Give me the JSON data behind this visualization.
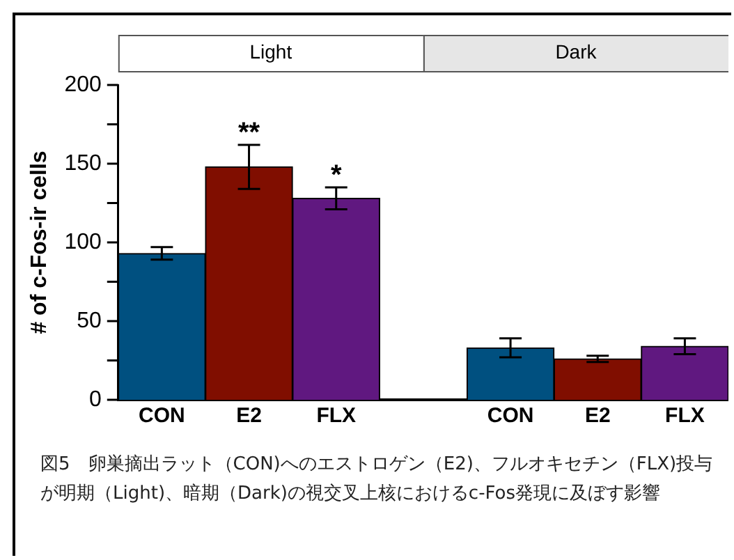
{
  "chart_data": {
    "type": "bar",
    "ylabel": "# of c-Fos-ir cells",
    "categories": [
      "CON",
      "E2",
      "FLX",
      null,
      "CON",
      "E2",
      "FLX"
    ],
    "values": [
      93,
      148,
      128,
      null,
      33,
      26,
      34
    ],
    "errors": [
      4,
      14,
      7,
      null,
      6,
      2,
      5
    ],
    "colors": [
      "#005080",
      "#800e00",
      "#601880",
      null,
      "#005080",
      "#800e00",
      "#601880"
    ],
    "ylim": [
      0,
      200
    ],
    "yticks": [
      0,
      {
        "value": 25,
        "label": null
      },
      50,
      {
        "value": 75,
        "label": null
      },
      100,
      {
        "value": 125,
        "label": null
      },
      150,
      {
        "value": 175,
        "label": null
      },
      200
    ],
    "grid": false,
    "legend": false,
    "annotations": [
      "Light",
      "Dark",
      {
        "text": "**",
        "x": "E2",
        "y": 162
      },
      {
        "text": "*",
        "x": "FLX",
        "y": 135
      },
      "図5　卵巣摘出ラット（CON)へのエストロゲン（E2)、フルオキセチン（FLX)投与が明期（Light)、暗期（Dark)の視交叉上核におけるc-Fos発現に及ぼす影響"
    ]
  }
}
